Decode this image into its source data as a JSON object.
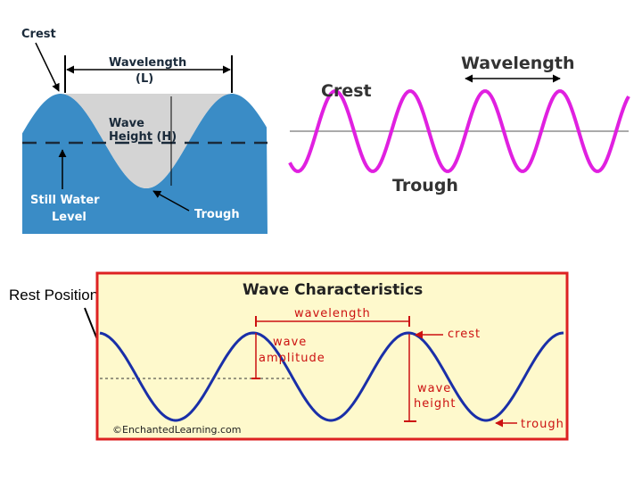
{
  "water_diagram": {
    "crest": "Crest",
    "wavelength": "Wavelength",
    "wavelength_symbol": "(L)",
    "wave_height_line1": "Wave",
    "wave_height_line2": "Height (H)",
    "still_water_line1": "Still Water",
    "still_water_line2": "Level",
    "trough": "Trough"
  },
  "sine_diagram": {
    "wavelength": "Wavelength",
    "crest": "Crest",
    "trough": "Trough"
  },
  "rest_position": "Rest Position",
  "characteristics_diagram": {
    "title": "Wave Characteristics",
    "wavelength": "wavelength",
    "amplitude_line1": "wave",
    "amplitude_line2": "amplitude",
    "crest": "crest",
    "height_line1": "wave",
    "height_line2": "height",
    "trough": "trough",
    "credit": "©EnchantedLearning.com"
  }
}
